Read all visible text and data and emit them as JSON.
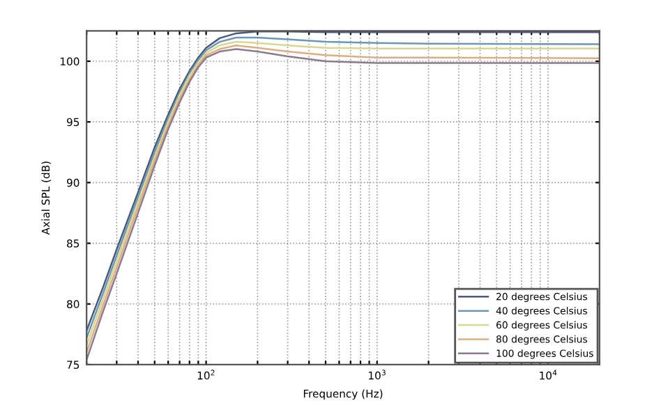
{
  "chart_data": {
    "type": "line",
    "xlabel": "Frequency (Hz)",
    "ylabel": "Axial SPL (dB)",
    "log": "x",
    "x": [
      20,
      25,
      30,
      40,
      50,
      60,
      70,
      80,
      90,
      100,
      120,
      150,
      200,
      300,
      500,
      1000,
      2000,
      20000
    ],
    "series": [
      {
        "name": "20 degrees Celsius",
        "color": "#4a5a78",
        "values": [
          77.8,
          81.4,
          84.5,
          89.2,
          92.9,
          95.6,
          97.7,
          99.2,
          100.3,
          101.1,
          101.9,
          102.3,
          102.45,
          102.45,
          102.4,
          102.4,
          102.4,
          102.4
        ]
      },
      {
        "name": "40 degrees Celsius",
        "color": "#6a98b8",
        "values": [
          77.2,
          80.9,
          84.0,
          88.8,
          92.5,
          95.3,
          97.4,
          99.0,
          100.1,
          100.9,
          101.6,
          101.95,
          101.95,
          101.8,
          101.6,
          101.5,
          101.45,
          101.4
        ]
      },
      {
        "name": "60 degrees Celsius",
        "color": "#d8d890",
        "values": [
          76.6,
          80.4,
          83.5,
          88.4,
          92.1,
          95.0,
          97.2,
          98.8,
          99.9,
          100.7,
          101.3,
          101.6,
          101.5,
          101.3,
          101.1,
          101.05,
          101.05,
          101.05
        ]
      },
      {
        "name": "80 degrees Celsius",
        "color": "#dcae80",
        "values": [
          76.0,
          79.9,
          83.0,
          88.0,
          91.8,
          94.7,
          96.9,
          98.5,
          99.7,
          100.5,
          101.0,
          101.3,
          101.1,
          100.8,
          100.5,
          100.3,
          100.3,
          100.25
        ]
      },
      {
        "name": "100 degrees Celsius",
        "color": "#8c7a90",
        "values": [
          75.4,
          79.4,
          82.5,
          87.5,
          91.4,
          94.4,
          96.6,
          98.3,
          99.5,
          100.3,
          100.8,
          101.0,
          100.8,
          100.4,
          100.0,
          99.85,
          99.85,
          99.85
        ]
      }
    ],
    "xlim": [
      20,
      20000
    ],
    "ylim": [
      75,
      102.5
    ],
    "xticks": [
      {
        "value": 20,
        "label": null
      },
      {
        "value": 30,
        "label": null
      },
      {
        "value": 40,
        "label": null
      },
      {
        "value": 50,
        "label": null
      },
      {
        "value": 60,
        "label": null
      },
      {
        "value": 70,
        "label": null
      },
      {
        "value": 80,
        "label": null
      },
      {
        "value": 90,
        "label": null
      },
      {
        "value": 100,
        "label": "10$^{2}$"
      },
      {
        "value": 200,
        "label": null
      },
      {
        "value": 300,
        "label": null
      },
      {
        "value": 400,
        "label": null
      },
      {
        "value": 500,
        "label": null
      },
      {
        "value": 600,
        "label": null
      },
      {
        "value": 700,
        "label": null
      },
      {
        "value": 800,
        "label": null
      },
      {
        "value": 900,
        "label": null
      },
      {
        "value": 1000,
        "label": "10$^{3}$"
      },
      {
        "value": 2000,
        "label": null
      },
      {
        "value": 3000,
        "label": null
      },
      {
        "value": 4000,
        "label": null
      },
      {
        "value": 5000,
        "label": null
      },
      {
        "value": 6000,
        "label": null
      },
      {
        "value": 7000,
        "label": null
      },
      {
        "value": 8000,
        "label": null
      },
      {
        "value": 9000,
        "label": null
      },
      {
        "value": 10000,
        "label": "10$^{4}$"
      },
      {
        "value": 20000,
        "label": null
      }
    ],
    "yticks": [
      75,
      80,
      85,
      90,
      95,
      100
    ],
    "grid": true,
    "legend": "bottom right",
    "line_style": "solid",
    "marker": "none"
  }
}
